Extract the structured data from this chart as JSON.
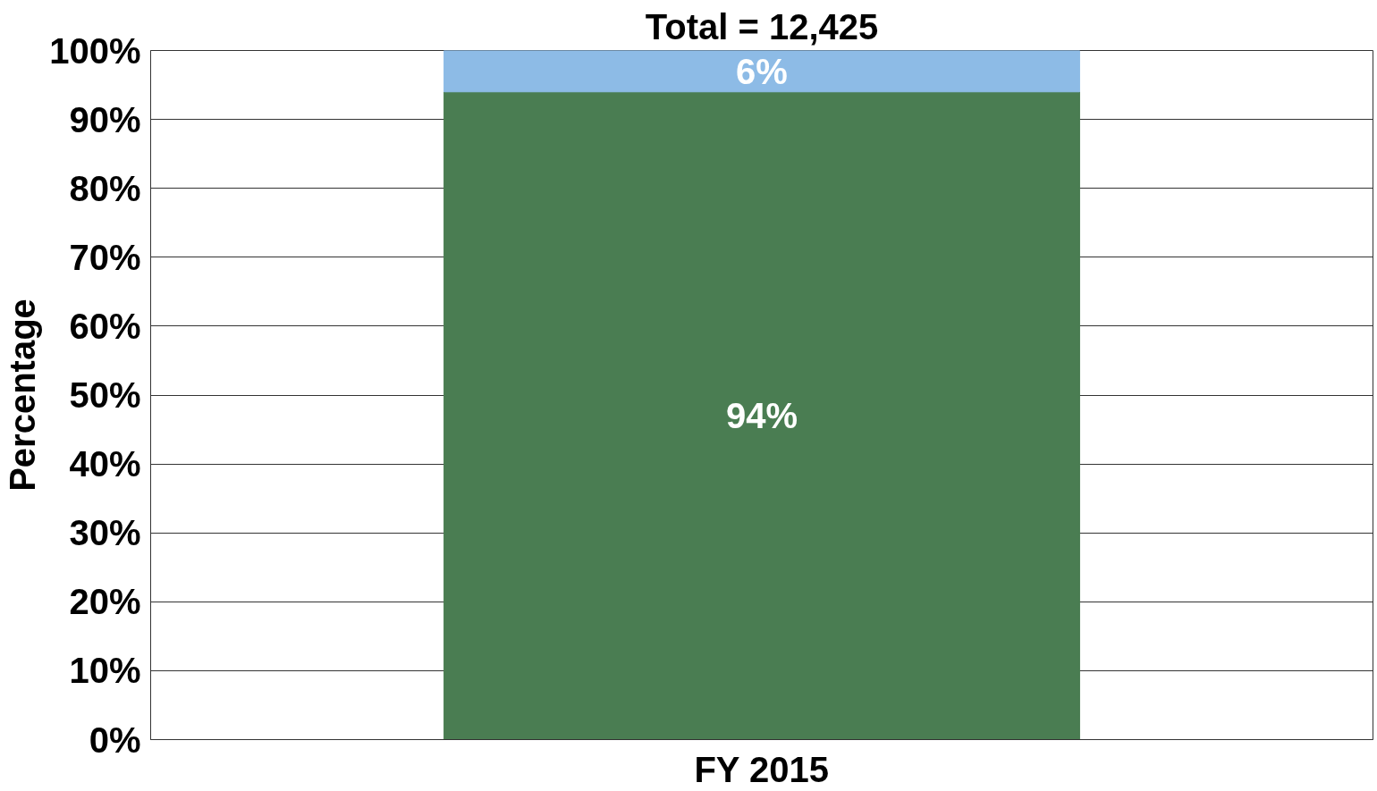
{
  "chart_data": {
    "type": "bar",
    "title": "Total = 12,425",
    "ylabel": "Percentage",
    "categories": [
      "FY 2015"
    ],
    "stacked": true,
    "grid": "y",
    "series": [
      {
        "color": "#4a7d52",
        "values": [
          94
        ],
        "value_labels": [
          "94%"
        ]
      },
      {
        "color": "#8dbbe6",
        "values": [
          6
        ],
        "value_labels": [
          "6%"
        ]
      }
    ],
    "ylim": [
      0,
      100
    ],
    "yticks": [
      {
        "value": 0,
        "label": "0%"
      },
      {
        "value": 10,
        "label": "10%"
      },
      {
        "value": 20,
        "label": "20%"
      },
      {
        "value": 30,
        "label": "30%"
      },
      {
        "value": 40,
        "label": "40%"
      },
      {
        "value": 50,
        "label": "50%"
      },
      {
        "value": 60,
        "label": "60%"
      },
      {
        "value": 70,
        "label": "70%"
      },
      {
        "value": 80,
        "label": "80%"
      },
      {
        "value": 90,
        "label": "90%"
      },
      {
        "value": 100,
        "label": "100%"
      }
    ]
  }
}
